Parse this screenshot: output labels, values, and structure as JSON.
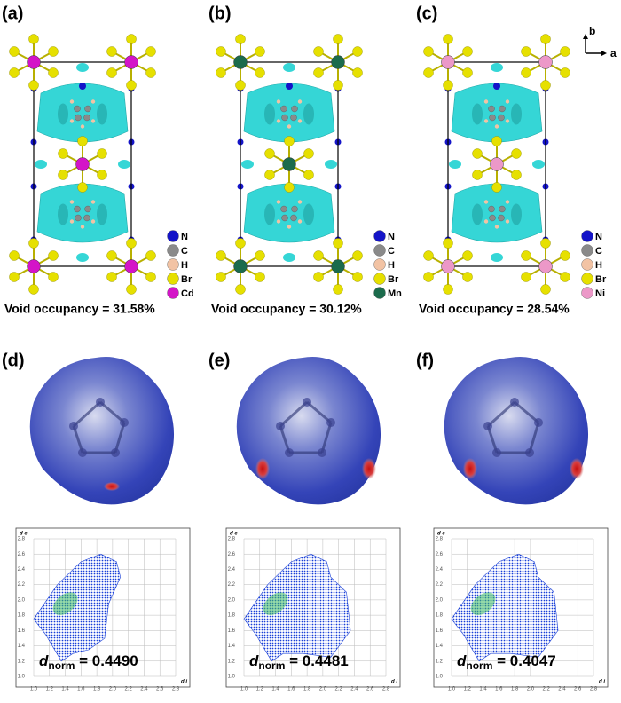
{
  "panels": [
    {
      "structure_label": "(a)",
      "legend": [
        {
          "name": "N",
          "color": "#1414c8"
        },
        {
          "name": "C",
          "color": "#8a8a8a"
        },
        {
          "name": "H",
          "color": "#f2c3a4"
        },
        {
          "name": "Br",
          "color": "#e6e000"
        },
        {
          "name": "Cd",
          "color": "#d414c8"
        }
      ],
      "void_text": "Void occupancy = 31.58%",
      "surface_label": "(d)",
      "fingerprint": {
        "y_label": "d e",
        "x_label": "d i",
        "dnorm_symbol": "d",
        "dnorm_subscript": "norm",
        "dnorm_value": " = 0.4490"
      }
    },
    {
      "structure_label": "(b)",
      "legend": [
        {
          "name": "N",
          "color": "#1414c8"
        },
        {
          "name": "C",
          "color": "#8a8a8a"
        },
        {
          "name": "H",
          "color": "#f2c3a4"
        },
        {
          "name": "Br",
          "color": "#e6e000"
        },
        {
          "name": "Mn",
          "color": "#1b6b4c"
        }
      ],
      "void_text": "Void occupancy = 30.12%",
      "surface_label": "(e)",
      "fingerprint": {
        "y_label": "d e",
        "x_label": "d i",
        "dnorm_symbol": "d",
        "dnorm_subscript": "norm",
        "dnorm_value": " = 0.4481"
      }
    },
    {
      "structure_label": "(c)",
      "legend": [
        {
          "name": "N",
          "color": "#1414c8"
        },
        {
          "name": "C",
          "color": "#8a8a8a"
        },
        {
          "name": "H",
          "color": "#f2c3a4"
        },
        {
          "name": "Br",
          "color": "#e6e000"
        },
        {
          "name": "Ni",
          "color": "#ec98c8"
        }
      ],
      "void_text": "Void occupancy = 28.54%",
      "surface_label": "(f)",
      "fingerprint": {
        "y_label": "d e",
        "x_label": "d i",
        "dnorm_symbol": "d",
        "dnorm_subscript": "norm",
        "dnorm_value": " = 0.4047"
      }
    }
  ],
  "fingerprint_ticks": [
    "1.0",
    "1.2",
    "1.4",
    "1.6",
    "1.8",
    "2.0",
    "2.2",
    "2.4",
    "2.6",
    "2.8"
  ],
  "axis_indicator": {
    "vertical": "b",
    "horizontal": "a"
  }
}
